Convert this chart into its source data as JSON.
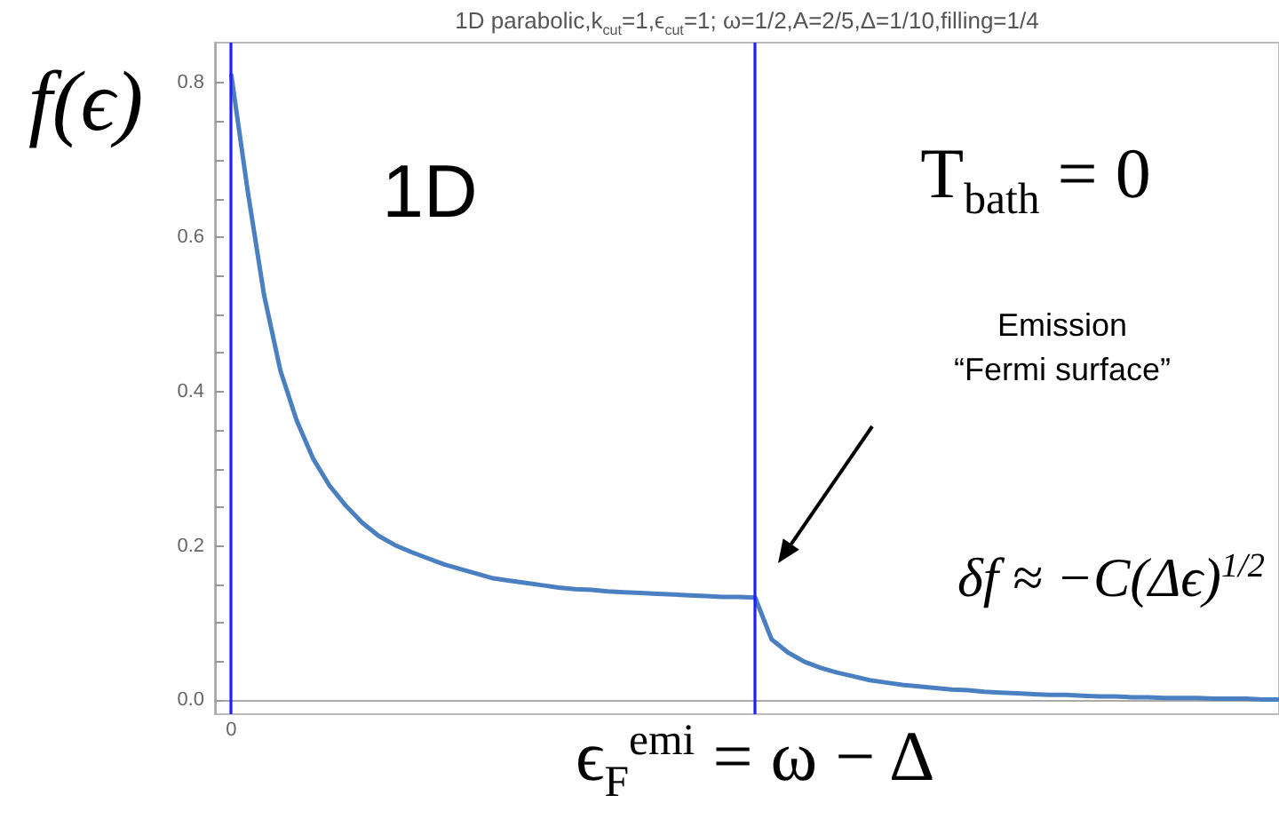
{
  "chart_data": {
    "type": "line",
    "title": "1D parabolic,k$_{cut}$=1,ϵ$_{cut}$=1; ω=1/2,A=2/5,Δ=1/10,filling=1/4",
    "ylabel": "f(ϵ)",
    "annotations": [
      "1D",
      "T$_{bath}$ = 0",
      "Emission\n“Fermi surface”",
      "δf ≈ −C(Δϵ)$^{1/2}$"
    ],
    "categories": [
      null,
      "0",
      null,
      null,
      null,
      null,
      null,
      null,
      null,
      null,
      null,
      null,
      null,
      null,
      null,
      null,
      null,
      null,
      null,
      null,
      null,
      null,
      null,
      null,
      null,
      null,
      null,
      null,
      null,
      null,
      null,
      null,
      null,
      "ϵ$_{F}$$^{emi}$ = ω − Δ",
      null,
      null,
      null,
      null,
      null,
      null,
      null,
      null,
      null,
      null,
      null,
      null,
      null,
      null,
      null,
      null,
      null,
      null,
      null,
      null,
      null,
      null,
      null,
      null,
      null,
      null,
      null,
      null,
      null,
      null,
      null,
      null
    ],
    "series": [
      {
        "color": "#4a7fc1",
        "values": [
          null,
          0.81,
          0.66,
          0.525,
          0.427,
          0.362,
          0.313,
          0.278,
          0.252,
          0.23,
          0.213,
          0.201,
          0.192,
          0.184,
          0.176,
          0.17,
          0.164,
          0.158,
          0.155,
          0.152,
          0.149,
          0.146,
          0.144,
          0.143,
          0.141,
          0.14,
          0.139,
          0.138,
          0.137,
          0.136,
          0.135,
          0.134,
          0.134,
          0.133,
          0.079,
          0.062,
          0.05,
          0.042,
          0.036,
          0.031,
          0.026,
          0.023,
          0.02,
          0.018,
          0.016,
          0.014,
          0.013,
          0.011,
          0.01,
          0.009,
          0.008,
          0.007,
          0.007,
          0.006,
          0.005,
          0.005,
          0.004,
          0.004,
          0.003,
          0.003,
          0.003,
          0.002,
          0.002,
          0.002,
          0.001,
          0.001
        ]
      }
    ],
    "ylim": [
      -0.018,
      0.852
    ],
    "yticks": [
      {
        "value": 0,
        "label": "0.0"
      },
      {
        "value": 0.05,
        "label": null
      },
      {
        "value": 0.1,
        "label": null
      },
      {
        "value": 0.15,
        "label": null
      },
      {
        "value": 0.2,
        "label": "0.2"
      },
      {
        "value": 0.25,
        "label": null
      },
      {
        "value": 0.3,
        "label": null
      },
      {
        "value": 0.35,
        "label": null
      },
      {
        "value": 0.4,
        "label": "0.4"
      },
      {
        "value": 0.45,
        "label": null
      },
      {
        "value": 0.5,
        "label": null
      },
      {
        "value": 0.55,
        "label": null
      },
      {
        "value": 0.6,
        "label": "0.6"
      },
      {
        "value": 0.65,
        "label": null
      },
      {
        "value": 0.7,
        "label": null
      },
      {
        "value": 0.75,
        "label": null
      },
      {
        "value": 0.8,
        "label": "0.8"
      }
    ],
    "ref_lines": [
      {
        "axis": "x",
        "value": "0",
        "color": "#1f1fff"
      },
      {
        "axis": "x",
        "value": "ϵ$_{F}$$^{emi}$ = ω − Δ",
        "color": "#1f1fff"
      }
    ]
  }
}
